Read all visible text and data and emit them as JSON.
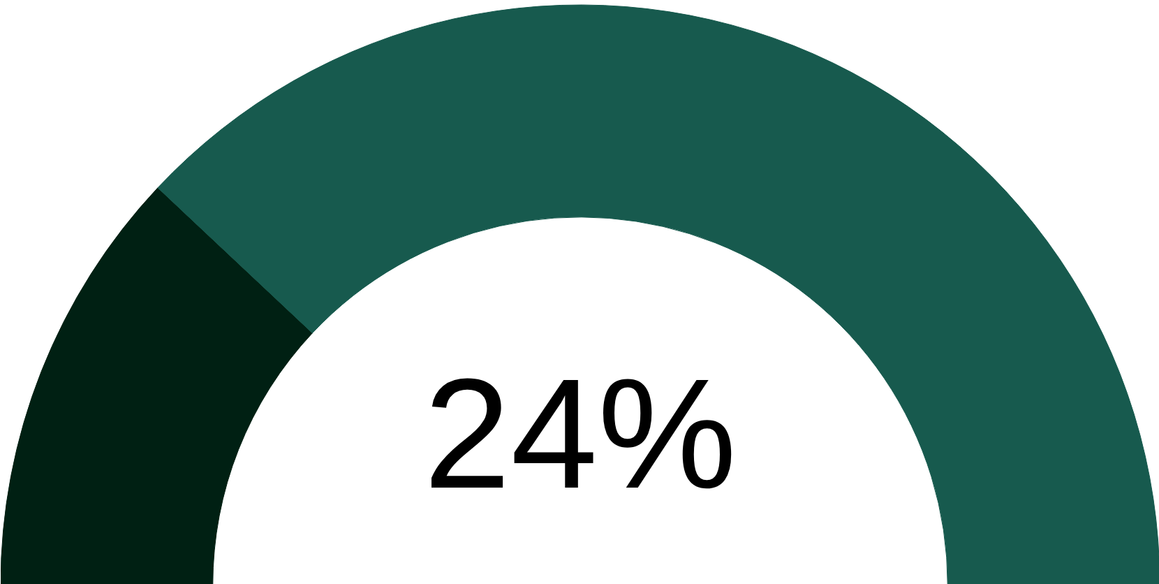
{
  "chart_data": {
    "type": "donut",
    "categories": [
      null,
      null
    ],
    "values": [
      24,
      76
    ],
    "colors": [
      "#002013",
      "#175a4e"
    ],
    "annotations": [
      "24%"
    ]
  }
}
